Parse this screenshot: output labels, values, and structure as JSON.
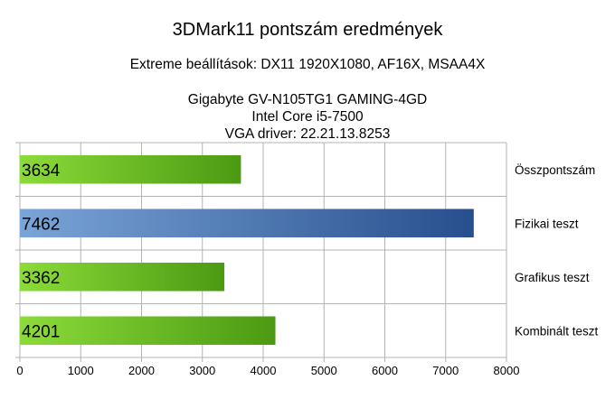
{
  "chart_data": {
    "type": "bar",
    "orientation": "horizontal",
    "title": "3DMark11 pontszám eredmények",
    "subtitle": "Extreme beállítások: DX11 1920X1080, AF16X, MSAA4X",
    "system_info": [
      "Gigabyte GV-N105TG1 GAMING-4GD",
      "Intel Core i5-7500",
      "VGA driver: 22.21.13.8253"
    ],
    "categories": [
      "Összpontszám",
      "Fizikai teszt",
      "Grafikus teszt",
      "Kombinált teszt"
    ],
    "values": [
      3634,
      7462,
      3362,
      4201
    ],
    "value_labels": [
      "3634",
      "7462",
      "3362",
      "4201"
    ],
    "bar_colors": [
      "#6cc42a",
      "#4a78b6",
      "#6cc42a",
      "#6cc42a"
    ],
    "xlim": [
      0,
      8000
    ],
    "xticks": [
      0,
      1000,
      2000,
      3000,
      4000,
      5000,
      6000,
      7000,
      8000
    ],
    "xtick_labels": [
      "0",
      "1000",
      "2000",
      "3000",
      "4000",
      "5000",
      "6000",
      "7000",
      "8000"
    ],
    "grid": true,
    "legend": "none"
  }
}
